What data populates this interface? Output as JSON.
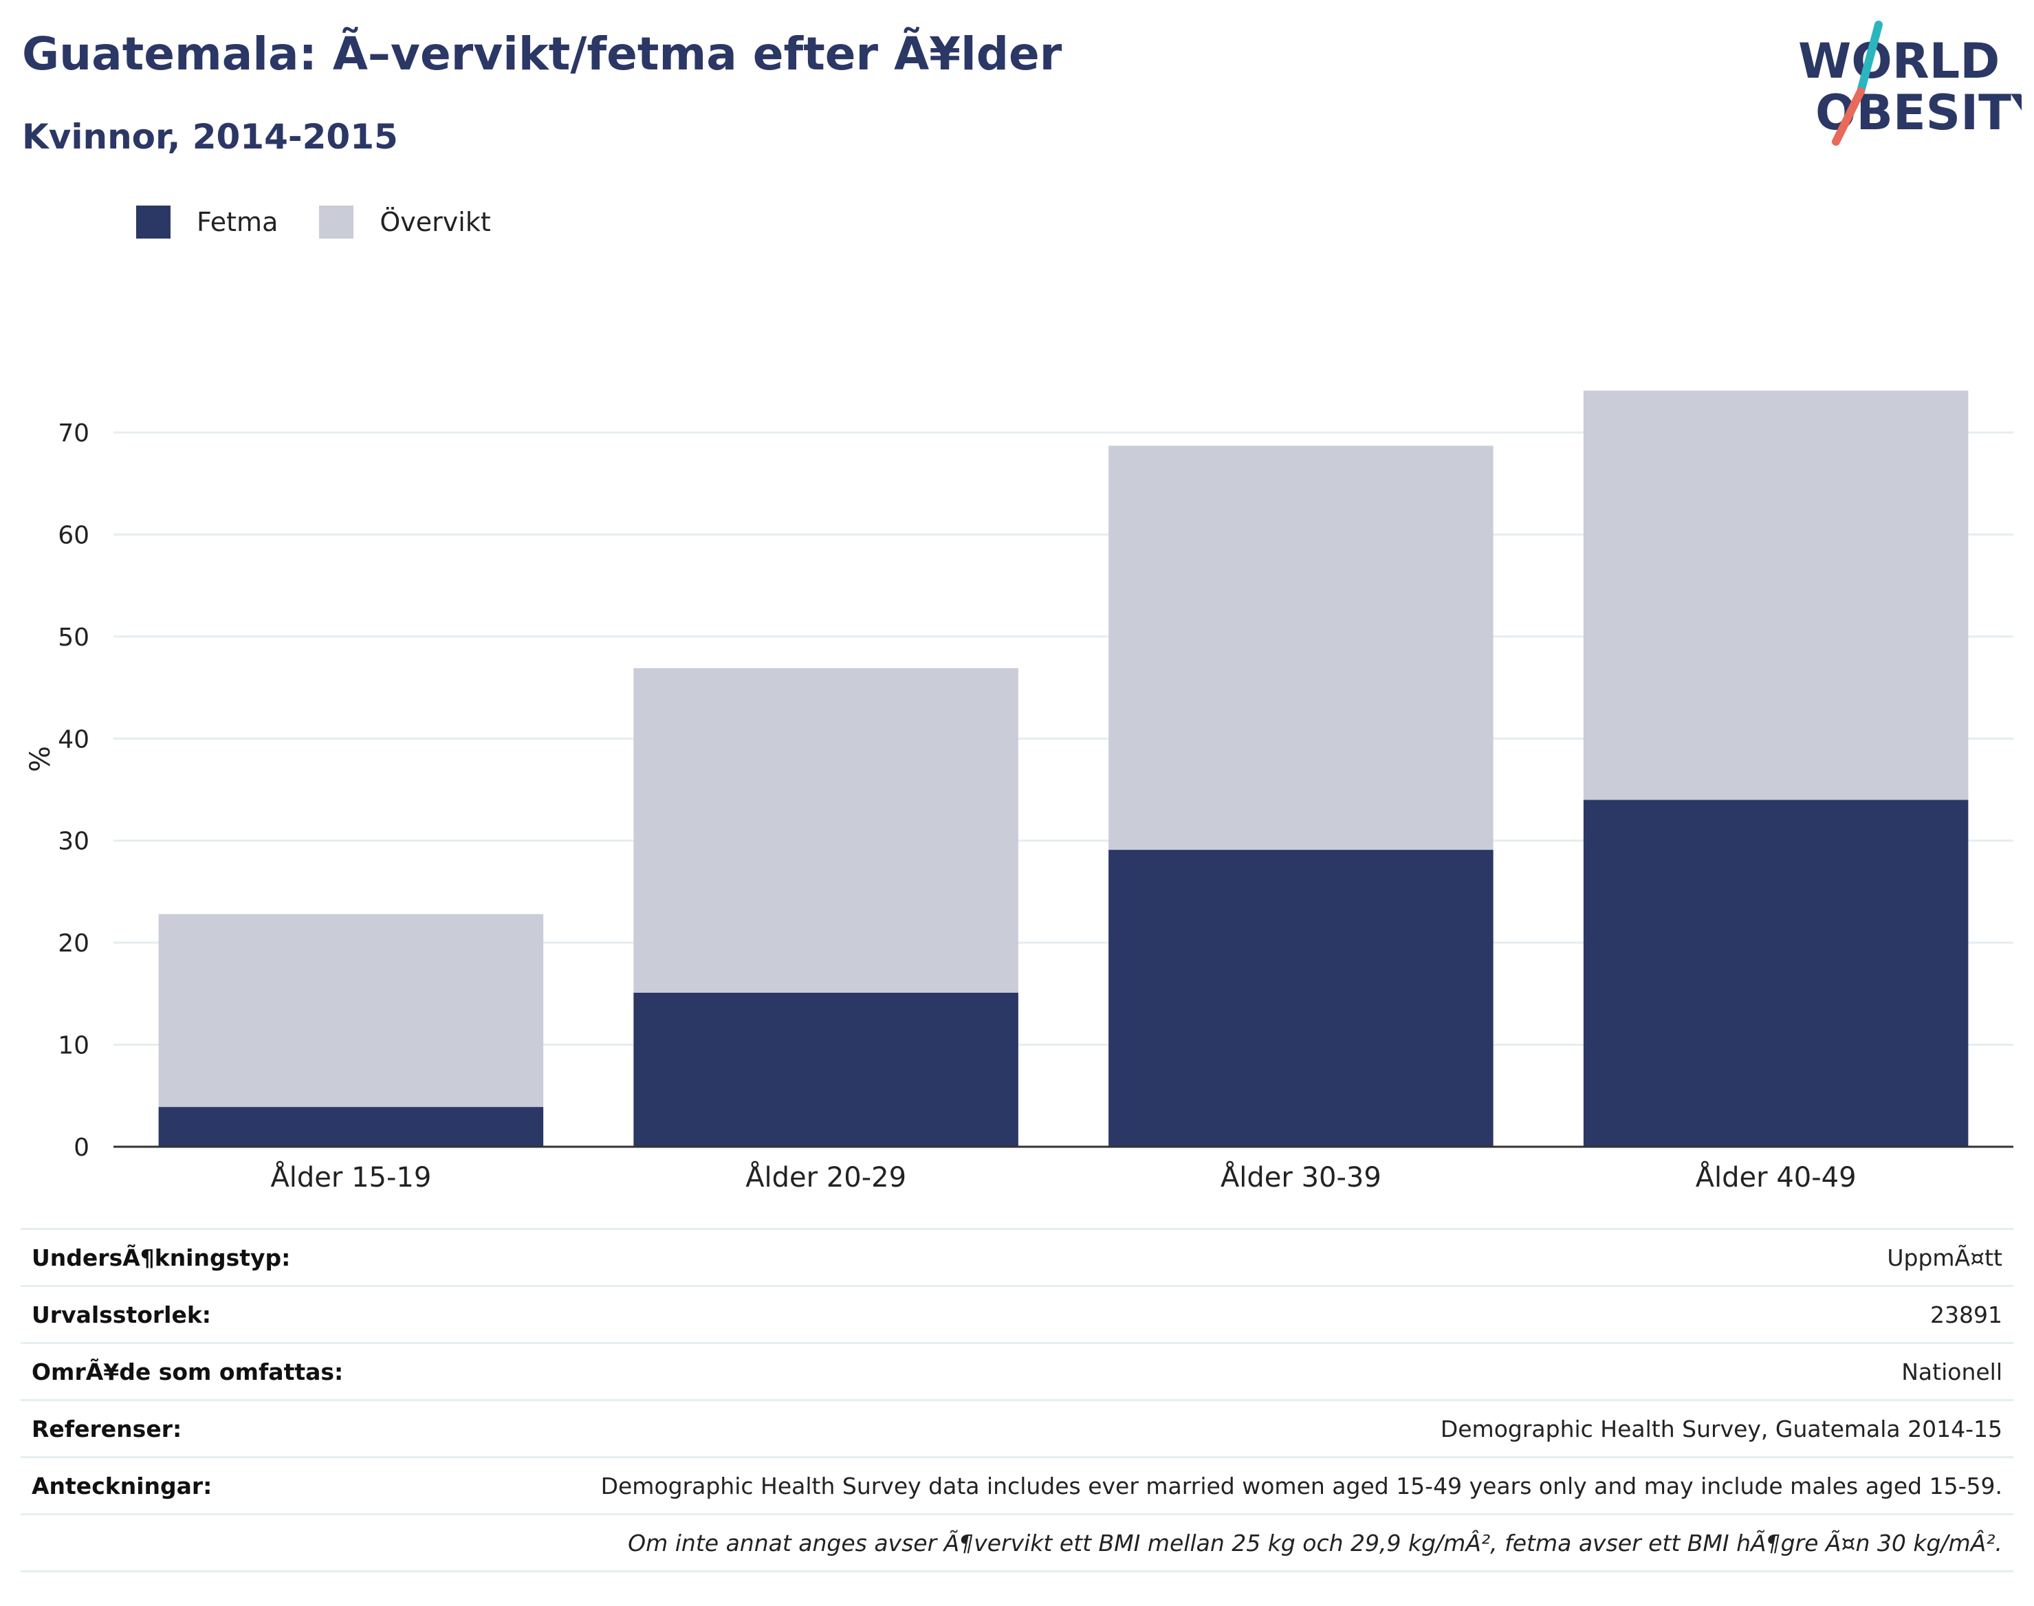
{
  "header": {
    "title": "Guatemala: Ã–vervikt/fetma efter Ã¥lder",
    "subtitle": "Kvinnor, 2014-2015"
  },
  "logo": {
    "line1": "WORLD",
    "line2": "OBESITY"
  },
  "colors": {
    "fetma": "#2b3765",
    "overvikt": "#caccd8",
    "title": "#2b3765",
    "grid": "#e6edf0",
    "axis": "#333333",
    "logo_teal": "#2bb5bf",
    "logo_coral": "#e86a5a"
  },
  "chart_data": {
    "type": "bar",
    "stacked": true,
    "categories": [
      "Ålder 15-19",
      "Ålder 20-29",
      "Ålder 30-39",
      "Ålder 40-49"
    ],
    "series": [
      {
        "name": "Fetma",
        "values": [
          3.9,
          15.1,
          29.1,
          34.0
        ]
      },
      {
        "name": "Övervikt",
        "values": [
          18.9,
          31.8,
          39.6,
          40.1
        ]
      }
    ],
    "ylabel": "%",
    "ylim": [
      0,
      76
    ],
    "yticks": [
      0,
      10,
      20,
      30,
      40,
      50,
      60,
      70
    ],
    "grid": true,
    "legend_position": "top-left"
  },
  "meta": [
    {
      "label": "UndersÃ¶kningstyp:",
      "value": "UppmÃ¤tt"
    },
    {
      "label": "Urvalsstorlek:",
      "value": "23891"
    },
    {
      "label": "OmrÃ¥de som omfattas:",
      "value": "Nationell"
    },
    {
      "label": "Referenser:",
      "value": "Demographic Health Survey, Guatemala 2014-15"
    },
    {
      "label": "Anteckningar:",
      "value": "Demographic Health Survey data includes ever married women aged 15-49 years only and may include males aged 15-59."
    },
    {
      "label": "",
      "value": "Om inte annat anges avser Ã¶vervikt ett BMI mellan 25 kg och 29,9 kg/mÂ², fetma avser ett BMI hÃ¶gre Ã¤n 30 kg/mÂ²."
    }
  ]
}
